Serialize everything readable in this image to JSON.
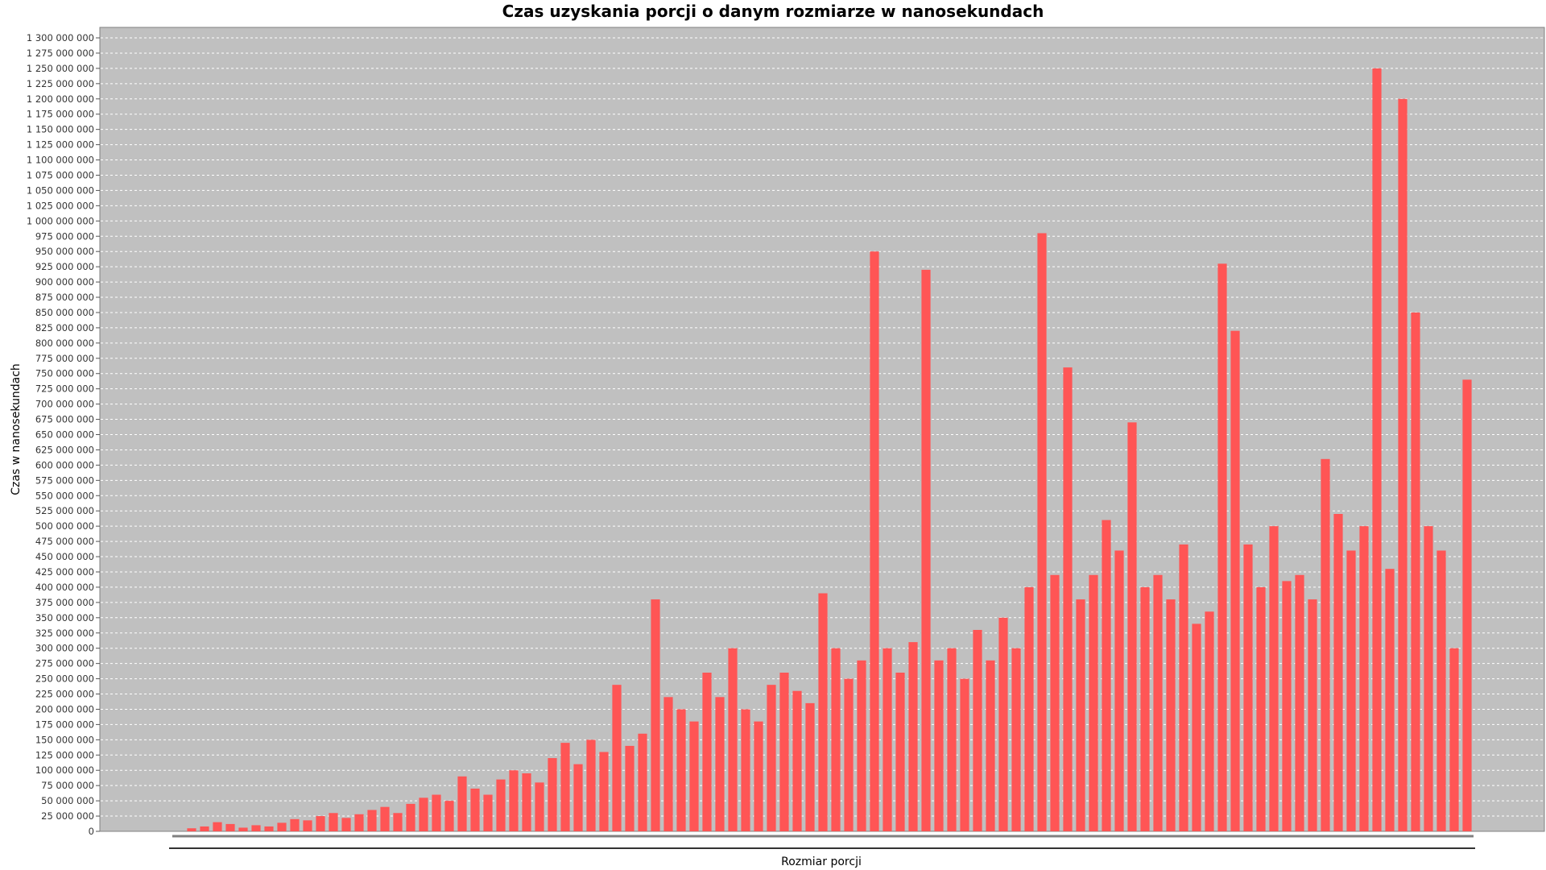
{
  "chart_data": {
    "type": "bar",
    "title": "Czas uzyskania porcji o danym rozmiarze w nanosekundach",
    "xlabel": "Rozmiar porcji",
    "ylabel": "Czas w nanosekundach",
    "ylim": [
      0,
      1300000000
    ],
    "ytick_step": 25000000,
    "ytick_labels": [
      "0",
      "25 000 000",
      "50 000 000",
      "75 000 000",
      "100 000 000",
      "125 000 000",
      "150 000 000",
      "175 000 000",
      "200 000 000",
      "225 000 000",
      "250 000 000",
      "275 000 000",
      "300 000 000",
      "325 000 000",
      "350 000 000",
      "375 000 000",
      "400 000 000",
      "425 000 000",
      "450 000 000",
      "475 000 000",
      "500 000 000",
      "525 000 000",
      "550 000 000",
      "575 000 000",
      "600 000 000",
      "625 000 000",
      "650 000 000",
      "675 000 000",
      "700 000 000",
      "725 000 000",
      "750 000 000",
      "775 000 000",
      "800 000 000",
      "825 000 000",
      "850 000 000",
      "875 000 000",
      "900 000 000",
      "925 000 000",
      "950 000 000",
      "975 000 000",
      "1 000 000 000",
      "1 025 000 000",
      "1 050 000 000",
      "1 075 000 000",
      "1 100 000 000",
      "1 125 000 000",
      "1 150 000 000",
      "1 175 000 000",
      "1 200 000 000",
      "1 225 000 000",
      "1 250 000 000",
      "1 275 000 000",
      "1 300 000 000"
    ],
    "grid": true,
    "background_color": "#c0c0c0",
    "series": [
      {
        "color": "#ff5555",
        "values": [
          5000000,
          8000000,
          15000000,
          12000000,
          6000000,
          10000000,
          8000000,
          14000000,
          20000000,
          18000000,
          25000000,
          30000000,
          22000000,
          28000000,
          35000000,
          40000000,
          30000000,
          45000000,
          55000000,
          60000000,
          50000000,
          90000000,
          70000000,
          60000000,
          85000000,
          100000000,
          95000000,
          80000000,
          120000000,
          145000000,
          110000000,
          150000000,
          130000000,
          240000000,
          140000000,
          160000000,
          380000000,
          220000000,
          200000000,
          180000000,
          260000000,
          220000000,
          300000000,
          200000000,
          180000000,
          240000000,
          260000000,
          230000000,
          210000000,
          390000000,
          300000000,
          250000000,
          280000000,
          950000000,
          300000000,
          260000000,
          310000000,
          920000000,
          280000000,
          300000000,
          250000000,
          330000000,
          280000000,
          350000000,
          300000000,
          400000000,
          980000000,
          420000000,
          760000000,
          380000000,
          420000000,
          510000000,
          460000000,
          670000000,
          400000000,
          420000000,
          380000000,
          470000000,
          340000000,
          360000000,
          930000000,
          820000000,
          470000000,
          400000000,
          500000000,
          410000000,
          420000000,
          380000000,
          610000000,
          520000000,
          460000000,
          500000000,
          1250000000,
          430000000,
          1200000000,
          850000000,
          500000000,
          460000000,
          300000000,
          740000000
        ]
      }
    ]
  }
}
